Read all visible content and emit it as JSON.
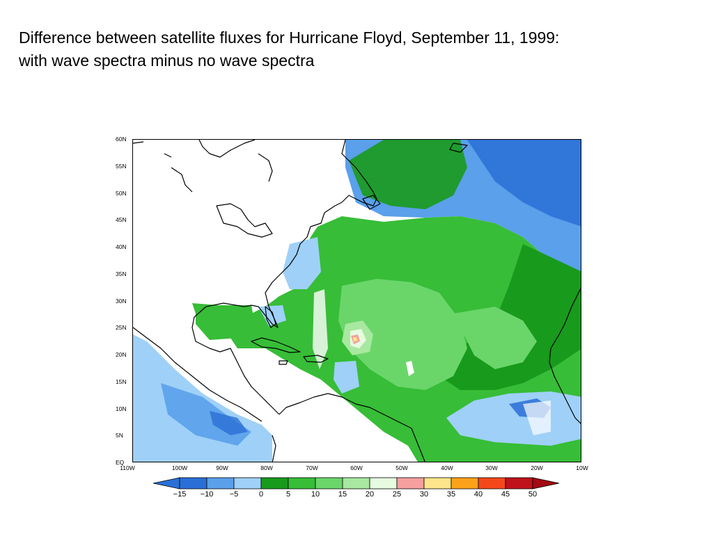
{
  "title": {
    "line1": "Difference between satellite fluxes for Hurricane Floyd, September 11, 1999:",
    "line2": "with wave spectra minus no wave spectra"
  },
  "map": {
    "lat_ticks": [
      "60N",
      "55N",
      "50N",
      "45N",
      "40N",
      "35N",
      "30N",
      "25N",
      "20N",
      "15N",
      "10N",
      "5N",
      "EQ"
    ],
    "lon_ticks": [
      "110W",
      "100W",
      "90W",
      "80W",
      "70W",
      "60W",
      "50W",
      "40W",
      "30W",
      "20W",
      "10W"
    ],
    "lat_range": [
      0,
      60
    ],
    "lon_range": [
      -110,
      -10
    ],
    "region": "North Atlantic"
  },
  "colorbar": {
    "labels": [
      "−15",
      "−10",
      "−5",
      "0",
      "5",
      "10",
      "15",
      "20",
      "25",
      "30",
      "35",
      "40",
      "45",
      "50"
    ],
    "colors": [
      "#2a6fd6",
      "#5aa0ea",
      "#9fd0f8",
      "#189a1c",
      "#37bd37",
      "#6ad66a",
      "#a8e8a0",
      "#e6fbe0",
      "#f6a0a0",
      "#fce58a",
      "#fca21a",
      "#f5481a",
      "#c0121a",
      "#a30a12"
    ],
    "left_arrow_color": "#2a6fd6",
    "right_arrow_color": "#a30a12"
  }
}
